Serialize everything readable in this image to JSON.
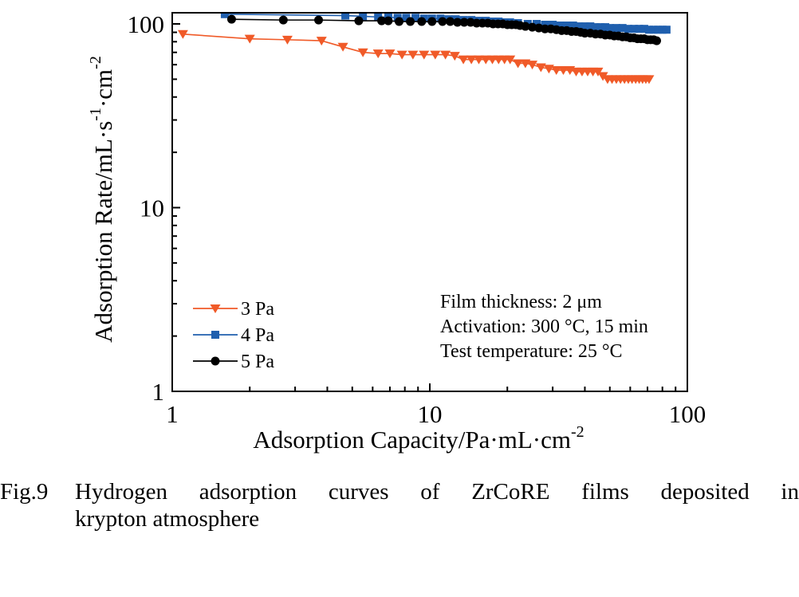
{
  "chart_data": {
    "type": "line",
    "xscale": "log",
    "yscale": "log",
    "xlim": [
      1,
      100
    ],
    "ylim": [
      1,
      100
    ],
    "xticks": [
      "1",
      "10",
      "100"
    ],
    "yticks": [
      "1",
      "10",
      "100"
    ],
    "xlabel": "Adsorption Capacity/Pa·mL·cm",
    "xlabel_sup": "-2",
    "ylabel_parts": [
      "Adsorption Rate/mL·s",
      "-1",
      "·cm",
      "-2"
    ],
    "legend_position": "bottom-left",
    "annotations": [
      "Film thickness: 2 μm",
      "Activation: 300 °C, 15 min",
      "Test temperature: 25 °C"
    ],
    "series": [
      {
        "name": "3 Pa",
        "color": "#f05a28",
        "marker": "triangle-down",
        "x": [
          1.1,
          2.0,
          2.8,
          3.8,
          4.6,
          5.5,
          6.3,
          7.0,
          7.8,
          8.6,
          9.5,
          10.5,
          11.5,
          12.5,
          13.5,
          14.5,
          15.5,
          16.5,
          17.5,
          18.5,
          19.5,
          20.5,
          22,
          23.5,
          25,
          27,
          29,
          31,
          33,
          35,
          37,
          39,
          41,
          43,
          45,
          47,
          49,
          51,
          53,
          55,
          57,
          59,
          61,
          63,
          65,
          67,
          69,
          71
        ],
        "y": [
          88,
          83,
          82,
          81,
          75,
          70,
          69,
          69,
          68,
          68,
          68,
          68,
          68,
          67,
          64,
          64,
          64,
          64,
          64,
          64,
          64,
          64,
          61,
          61,
          60,
          58,
          57,
          56,
          56,
          56,
          55,
          55,
          55,
          55,
          55,
          52,
          50,
          50,
          50,
          50,
          50,
          50,
          50,
          50,
          50,
          50,
          50,
          50
        ]
      },
      {
        "name": "4 Pa",
        "color": "#1f5fae",
        "marker": "square",
        "x": [
          1.6,
          4.7,
          5.5,
          6.3,
          6.9,
          7.5,
          8.1,
          8.8,
          9.5,
          10.2,
          11,
          11.8,
          12.6,
          13.5,
          14.5,
          15.5,
          16.5,
          17.5,
          18.5,
          19.5,
          20.5,
          22,
          24,
          26,
          28,
          30,
          32,
          34,
          36,
          38,
          40,
          42,
          44,
          46,
          48,
          50,
          53,
          56,
          59,
          62,
          65,
          68,
          71,
          74,
          77,
          80,
          83
        ],
        "y": [
          113,
          111,
          110,
          109,
          109,
          108,
          108,
          108,
          107,
          107,
          107,
          106,
          106,
          105,
          105,
          104,
          104,
          103,
          103,
          102,
          102,
          101,
          100,
          100,
          99,
          99,
          98,
          98,
          98,
          97,
          97,
          97,
          96,
          96,
          96,
          95,
          95,
          95,
          94,
          94,
          94,
          94,
          93,
          93,
          93,
          93,
          93
        ]
      },
      {
        "name": "5 Pa",
        "color": "#000000",
        "marker": "circle",
        "x": [
          1.7,
          2.7,
          3.7,
          5.3,
          6.5,
          6.9,
          7.6,
          8.4,
          9.3,
          10.2,
          11.2,
          12.0,
          12.8,
          13.6,
          14.4,
          15.2,
          16.0,
          16.8,
          17.6,
          18.4,
          19.2,
          20.0,
          20.8,
          21.6,
          22.4,
          23.5,
          25,
          26.5,
          28,
          29.5,
          31,
          32.5,
          34,
          35.5,
          37,
          38.5,
          40,
          42,
          44,
          46,
          48,
          50,
          52,
          54,
          56,
          58,
          60,
          62,
          64,
          66,
          68,
          70,
          72,
          74,
          76
        ],
        "y": [
          106,
          105,
          105,
          104,
          104,
          104,
          103,
          103,
          103,
          103,
          103,
          103,
          102,
          102,
          102,
          101,
          101,
          101,
          100,
          100,
          100,
          99,
          99,
          99,
          98,
          97,
          96,
          95,
          94,
          94,
          93,
          92,
          92,
          91,
          91,
          90,
          89,
          89,
          88,
          88,
          87,
          87,
          86,
          86,
          85,
          85,
          84,
          84,
          83,
          83,
          83,
          82,
          82,
          82,
          81
        ]
      }
    ]
  },
  "caption": {
    "label": "Fig.9",
    "line1": "Hydrogen adsorption curves of ZrCoRE films deposited in",
    "line2": "krypton atmosphere"
  }
}
